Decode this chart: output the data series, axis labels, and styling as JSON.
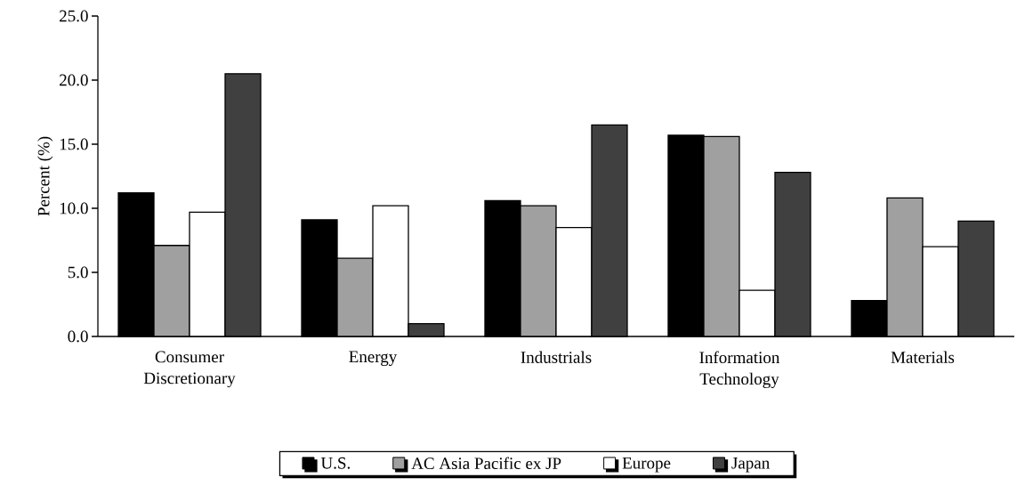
{
  "chart_data": {
    "type": "bar",
    "ylabel": "Percent (%)",
    "categories": [
      "Consumer Discretionary",
      "Energy",
      "Industrials",
      "Information Technology",
      "Materials"
    ],
    "series": [
      {
        "name": "U.S.",
        "color": "#000000",
        "values": [
          11.2,
          9.1,
          10.6,
          15.7,
          2.8
        ]
      },
      {
        "name": "AC Asia Pacific ex JP",
        "color": "#a0a0a0",
        "values": [
          7.1,
          6.1,
          10.2,
          15.6,
          10.8
        ]
      },
      {
        "name": "Europe",
        "color": "#ffffff",
        "values": [
          9.7,
          10.2,
          8.5,
          3.6,
          7.0
        ]
      },
      {
        "name": "Japan",
        "color": "#404040",
        "values": [
          20.5,
          1.0,
          16.5,
          12.8,
          9.0
        ]
      }
    ],
    "ylim": [
      0,
      25
    ],
    "yticks": [
      {
        "value": 0,
        "label": "0.0"
      },
      {
        "value": 5,
        "label": "5.0"
      },
      {
        "value": 10,
        "label": "10.0"
      },
      {
        "value": 15,
        "label": "15.0"
      },
      {
        "value": 20,
        "label": "20.0"
      },
      {
        "value": 25,
        "label": "25.0"
      }
    ],
    "legend": "bottom"
  }
}
